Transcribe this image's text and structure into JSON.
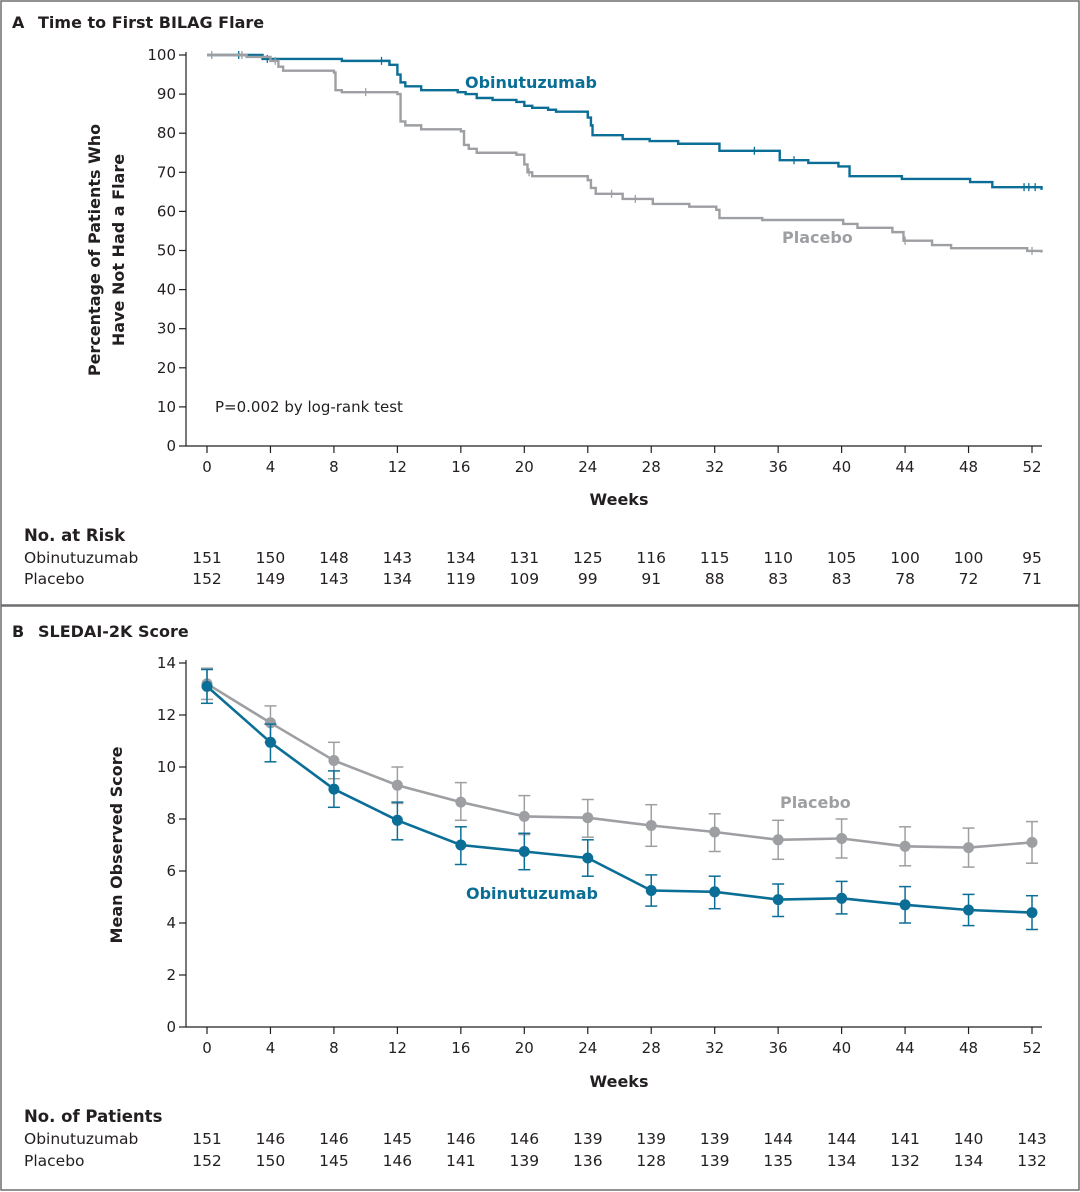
{
  "colors": {
    "obinutuzumab": "#0b6e96",
    "placebo": "#9d9fa2",
    "frame": "#6d6e71"
  },
  "chart_data": [
    {
      "panel_letter": "A",
      "title": "Time to First BILAG Flare",
      "type": "line",
      "step": true,
      "xlabel": "Weeks",
      "ylabel_lines": [
        "Percentage of Patients Who",
        "Have Not Had a Flare"
      ],
      "xlim": [
        0,
        52
      ],
      "ylim": [
        0,
        100
      ],
      "xticks": [
        0,
        4,
        8,
        12,
        16,
        20,
        24,
        28,
        32,
        36,
        40,
        44,
        48,
        52
      ],
      "yticks": [
        0,
        10,
        20,
        30,
        40,
        50,
        60,
        70,
        80,
        90,
        100
      ],
      "annotation": "P=0.002 by log-rank test",
      "series": [
        {
          "name": "Obinutuzumab",
          "color": "#0b6e96",
          "x": [
            0,
            3.5,
            8.5,
            11.5,
            12,
            12.2,
            12.5,
            13.5,
            15.8,
            16.3,
            17,
            18,
            19.5,
            20,
            20.5,
            21.5,
            22,
            24,
            24.2,
            24.3,
            26.2,
            27.9,
            29.7,
            32.3,
            36.1,
            37.9,
            39.8,
            40.5,
            43.8,
            48.1,
            49.5,
            52.6
          ],
          "y": [
            100,
            99,
            98.5,
            97.5,
            95,
            93,
            92,
            91,
            90.5,
            90,
            89,
            88.5,
            88,
            87,
            86.5,
            86,
            85.5,
            84,
            82,
            79.5,
            78.5,
            78,
            77.3,
            75.5,
            73.1,
            72.4,
            71.5,
            69,
            68.3,
            67.5,
            66.2,
            65.5
          ],
          "censored": [
            2,
            3.8,
            11,
            34.5,
            37,
            51.5,
            51.8,
            52.2
          ]
        },
        {
          "name": "Placebo",
          "color": "#9d9fa2",
          "x": [
            0,
            2.5,
            4,
            4.5,
            4.8,
            8,
            8.1,
            8.5,
            12,
            12.2,
            12.5,
            13.5,
            16,
            16.2,
            16.5,
            17,
            19.5,
            20,
            20.2,
            20.5,
            24,
            24.2,
            24.5,
            26.2,
            28.1,
            30.4,
            32.1,
            32.3,
            35,
            40.1,
            41,
            43.2,
            43.9,
            45.7,
            46.9,
            51.7,
            52.6
          ],
          "y": [
            100,
            99.5,
            98.5,
            97,
            96,
            95.5,
            91,
            90.5,
            90,
            83,
            82,
            81,
            80.5,
            77,
            76,
            75,
            74.5,
            72,
            70,
            69,
            68,
            66,
            64.5,
            63.2,
            61.9,
            61.2,
            60.4,
            58.3,
            57.8,
            56.8,
            55.8,
            54.7,
            52.5,
            51.4,
            50.6,
            49.9,
            49.5
          ],
          "censored": [
            0.3,
            2.2,
            4.3,
            10,
            20.3,
            25.5,
            27,
            44,
            52
          ]
        }
      ],
      "table_header": "No. at Risk",
      "table": [
        {
          "label": "Obinutuzumab",
          "values": [
            151,
            150,
            148,
            143,
            134,
            131,
            125,
            116,
            115,
            110,
            105,
            100,
            100,
            95
          ]
        },
        {
          "label": "Placebo",
          "values": [
            152,
            149,
            143,
            134,
            119,
            109,
            99,
            91,
            88,
            83,
            83,
            78,
            72,
            71
          ]
        }
      ]
    },
    {
      "panel_letter": "B",
      "title": "SLEDAI-2K Score",
      "type": "line",
      "xlabel": "Weeks",
      "ylabel": "Mean Observed Score",
      "xlim": [
        0,
        52
      ],
      "ylim": [
        0,
        14
      ],
      "xticks": [
        0,
        4,
        8,
        12,
        16,
        20,
        24,
        28,
        32,
        36,
        40,
        44,
        48,
        52
      ],
      "yticks": [
        0,
        2,
        4,
        6,
        8,
        10,
        12,
        14
      ],
      "series": [
        {
          "name": "Placebo",
          "color": "#9d9fa2",
          "x": [
            0,
            4,
            8,
            12,
            16,
            20,
            24,
            28,
            32,
            36,
            40,
            44,
            48,
            52
          ],
          "y": [
            13.2,
            11.7,
            10.25,
            9.3,
            8.65,
            8.1,
            8.05,
            7.75,
            7.5,
            7.2,
            7.25,
            6.95,
            6.9,
            7.1
          ],
          "lower": [
            12.6,
            10.95,
            9.55,
            8.6,
            7.95,
            7.4,
            7.3,
            6.95,
            6.75,
            6.45,
            6.5,
            6.2,
            6.15,
            6.3
          ],
          "upper": [
            13.8,
            12.35,
            10.95,
            10.0,
            9.4,
            8.9,
            8.75,
            8.55,
            8.2,
            7.95,
            8.0,
            7.7,
            7.65,
            7.9
          ]
        },
        {
          "name": "Obinutuzumab",
          "color": "#0b6e96",
          "x": [
            0,
            4,
            8,
            12,
            16,
            20,
            24,
            28,
            32,
            36,
            40,
            44,
            48,
            52
          ],
          "y": [
            13.1,
            10.95,
            9.15,
            7.95,
            7.0,
            6.75,
            6.5,
            5.25,
            5.2,
            4.9,
            4.95,
            4.7,
            4.5,
            4.4
          ],
          "lower": [
            12.45,
            10.2,
            8.45,
            7.2,
            6.25,
            6.05,
            5.8,
            4.65,
            4.55,
            4.25,
            4.35,
            4.0,
            3.9,
            3.75
          ],
          "upper": [
            13.75,
            11.65,
            9.85,
            8.65,
            7.7,
            7.45,
            7.2,
            5.85,
            5.8,
            5.5,
            5.6,
            5.4,
            5.1,
            5.05
          ]
        }
      ],
      "table_header": "No. of Patients",
      "table": [
        {
          "label": "Obinutuzumab",
          "values": [
            151,
            146,
            146,
            145,
            146,
            146,
            139,
            139,
            139,
            144,
            144,
            141,
            140,
            143
          ]
        },
        {
          "label": "Placebo",
          "values": [
            152,
            150,
            145,
            146,
            141,
            139,
            136,
            128,
            139,
            135,
            134,
            132,
            134,
            132
          ]
        }
      ]
    }
  ]
}
